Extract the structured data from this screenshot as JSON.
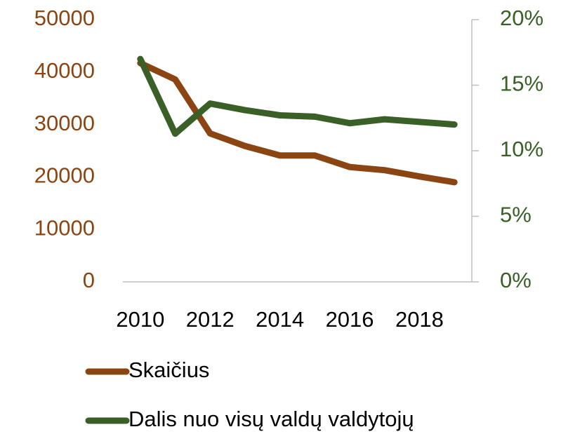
{
  "chart_data": {
    "type": "line",
    "x": [
      2010,
      2011,
      2012,
      2013,
      2014,
      2015,
      2016,
      2017,
      2018,
      2019
    ],
    "xlim": [
      2009.5,
      2019.5
    ],
    "xticks": [
      2010,
      2012,
      2014,
      2016,
      2018
    ],
    "ylim": [
      0,
      50000
    ],
    "yticks": [
      0,
      10000,
      20000,
      30000,
      40000,
      50000
    ],
    "y2lim": [
      0,
      20
    ],
    "y2ticks": [
      {
        "value": 0,
        "label": "0%"
      },
      {
        "value": 5,
        "label": "5%"
      },
      {
        "value": 10,
        "label": "10%"
      },
      {
        "value": 15,
        "label": "15%"
      },
      {
        "value": 20,
        "label": "20%"
      }
    ],
    "y_color": "#8b4513",
    "y2_color": "#3a5f27",
    "legend": "bottom",
    "series": [
      {
        "name": "Skaičius",
        "color": "#8b4513",
        "values": [
          41700,
          38600,
          28300,
          25900,
          24100,
          24100,
          21900,
          21300,
          20100,
          19000
        ]
      },
      {
        "name": "Dalis nuo visų valdų valdytojų",
        "color": "#3a5f27",
        "axis": "y2",
        "values": [
          17.0,
          11.3,
          13.6,
          13.1,
          12.7,
          12.6,
          12.1,
          12.4,
          12.2,
          12.0
        ]
      }
    ]
  }
}
